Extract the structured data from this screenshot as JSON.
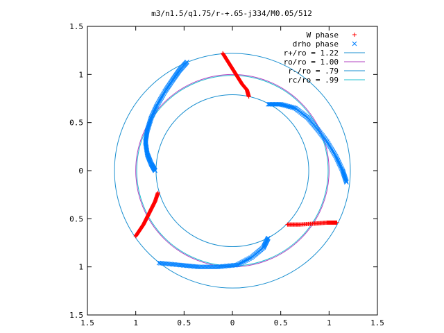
{
  "chart_data": {
    "type": "scatter",
    "title": "m3/n1.5/q1.75/r-+.65-j334/M0.05/512",
    "xlim": [
      -1.5,
      1.5
    ],
    "ylim": [
      -1.5,
      1.5
    ],
    "xticks": [
      -1.5,
      -1,
      -0.5,
      0,
      0.5,
      1,
      1.5
    ],
    "yticks": [
      -1.5,
      -1,
      -0.5,
      0,
      0.5,
      1,
      1.5
    ],
    "xtick_labels": [
      "1.5",
      "1",
      "0.5",
      "0",
      "0.5",
      "1",
      "1.5"
    ],
    "ytick_labels": [
      "1.5",
      "1",
      "0.5",
      "0",
      "0.5",
      "1",
      "1.5"
    ],
    "legend_position": "top-right",
    "grid": false,
    "series": [
      {
        "name": "W phase",
        "marker": "plus",
        "color": "#ff0000",
        "segments": [
          [
            [
              -0.1,
              1.22
            ],
            [
              -0.05,
              1.14
            ],
            [
              0.0,
              1.06
            ],
            [
              0.05,
              0.98
            ],
            [
              0.1,
              0.9
            ],
            [
              0.15,
              0.84
            ],
            [
              0.17,
              0.77
            ]
          ],
          [
            [
              -0.77,
              -0.23
            ],
            [
              -0.8,
              -0.32
            ],
            [
              -0.84,
              -0.4
            ],
            [
              -0.88,
              -0.48
            ],
            [
              -0.92,
              -0.56
            ],
            [
              -0.96,
              -0.62
            ],
            [
              -1.0,
              -0.68
            ]
          ],
          [
            [
              0.57,
              -0.56
            ],
            [
              0.7,
              -0.56
            ],
            [
              0.85,
              -0.55
            ],
            [
              0.98,
              -0.54
            ],
            [
              1.08,
              -0.54
            ]
          ]
        ]
      },
      {
        "name": "drho phase",
        "marker": "cross",
        "color": "#0080ff",
        "segments": [
          [
            [
              -0.47,
              1.13
            ],
            [
              -0.55,
              1.04
            ],
            [
              -0.62,
              0.94
            ],
            [
              -0.7,
              0.82
            ],
            [
              -0.78,
              0.68
            ],
            [
              -0.84,
              0.55
            ],
            [
              -0.88,
              0.42
            ],
            [
              -0.9,
              0.3
            ],
            [
              -0.88,
              0.17
            ],
            [
              -0.84,
              0.07
            ],
            [
              -0.8,
              0.0
            ]
          ],
          [
            [
              0.37,
              0.69
            ],
            [
              0.5,
              0.69
            ],
            [
              0.65,
              0.65
            ],
            [
              0.78,
              0.55
            ],
            [
              0.88,
              0.43
            ],
            [
              0.98,
              0.3
            ],
            [
              1.07,
              0.15
            ],
            [
              1.14,
              0.0
            ],
            [
              1.18,
              -0.12
            ]
          ],
          [
            [
              -0.76,
              -0.96
            ],
            [
              -0.55,
              -0.98
            ],
            [
              -0.35,
              -1.0
            ],
            [
              -0.15,
              -1.0
            ],
            [
              0.05,
              -0.98
            ],
            [
              0.2,
              -0.9
            ],
            [
              0.32,
              -0.8
            ],
            [
              0.37,
              -0.7
            ]
          ]
        ]
      }
    ],
    "circles": [
      {
        "name": "r+/ro = 1.22",
        "radius": 1.22,
        "color": "#1a8fd0"
      },
      {
        "name": "ro/ro = 1.00",
        "radius": 1.0,
        "color": "#b040c0"
      },
      {
        "name": "r-/ro = .79",
        "radius": 0.79,
        "color": "#1a8fd0"
      },
      {
        "name": "rc/ro = .99",
        "radius": 0.99,
        "color": "#20c0d0"
      }
    ]
  }
}
